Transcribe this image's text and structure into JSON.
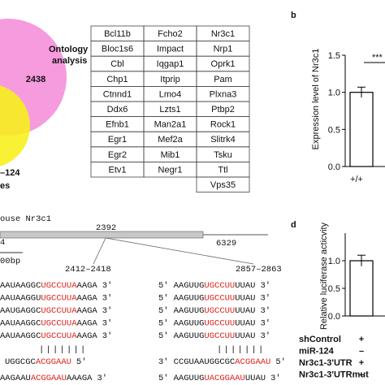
{
  "venn": {
    "count": "2438",
    "label_lines": [
      "Ontology",
      "analysis"
    ],
    "left_fragments": [
      "–124",
      "es"
    ]
  },
  "table": {
    "rows": [
      [
        "Bcl11b",
        "Fcho2",
        "Nr3c1"
      ],
      [
        "Bloc1s6",
        "Impact",
        "Nrp1"
      ],
      [
        "Cbl",
        "Iqgap1",
        "Oprk1"
      ],
      [
        "Chp1",
        "Itprip",
        "Pam"
      ],
      [
        "Ctnnd1",
        "Lmo4",
        "Plxna3"
      ],
      [
        "Ddx6",
        "Lzts1",
        "Ptbp2"
      ],
      [
        "Efnb1",
        "Man2a1",
        "Rock1"
      ],
      [
        "Egr1",
        "Mef2a",
        "Slitrk4"
      ],
      [
        "Egr2",
        "Mib1",
        "Tsku"
      ],
      [
        "Etv1",
        "Negr1",
        "Ttl"
      ],
      [
        null,
        null,
        "Vps35"
      ]
    ]
  },
  "panel_b": {
    "letter": "b",
    "ylabel": "Expression level of Nr3c1",
    "category": "+/+",
    "value": 1.0,
    "error": 0.07,
    "significance": "***",
    "ylim": [
      0,
      1.5
    ],
    "yticks": [
      {
        "value": 0,
        "label": "0.0"
      },
      0.5,
      {
        "value": 1,
        "label": "1.0"
      },
      1.5
    ]
  },
  "panel_d": {
    "letter": "d",
    "ylabel": "Relative luciferase acticvity",
    "value": 1.0,
    "error": 0.1,
    "ylim": [
      0,
      1.5
    ],
    "yticks": [
      {
        "value": 0,
        "label": "0.0"
      },
      0.5,
      {
        "value": 1,
        "label": "1.0"
      }
    ],
    "conditions": [
      {
        "name": "shControl",
        "sign": "+"
      },
      {
        "name": "miR-124",
        "sign": "–"
      },
      {
        "name": "Nr3c1-3'UTR",
        "sign": "+"
      },
      {
        "name": "Nr3c1-3'UTRmut",
        "sign": "–"
      }
    ]
  },
  "gene": {
    "title": "ouse Nr3c1",
    "start": "4",
    "site": "2392",
    "end": "6329",
    "scale": "00bp",
    "site1": "2412–2418",
    "site2": "2857–2863"
  },
  "sequences": {
    "left": {
      "rows": [
        [
          "AAUAAGGC",
          "UGCCUUA",
          "AAGA",
          "3′"
        ],
        [
          "AAUAAGGU",
          "UGCCUUA",
          "AAGA",
          "3′"
        ],
        [
          "AAUGAGGC",
          "UGCCUUA",
          "AAGA",
          "3′"
        ],
        [
          "AAUAAGGC",
          "UGCCUUA",
          "AAGA",
          "3′"
        ],
        [
          "AAUAAGGC",
          "UGCCUUA",
          "AAGA",
          "3′"
        ]
      ],
      "pairing": "|||||||",
      "mir": [
        "UGGCGC",
        "ACGGAAU",
        "5′"
      ],
      "mut": [
        "AAGAAU",
        "ACGGAAU",
        "AAAGA",
        "3′"
      ]
    },
    "right": {
      "rows": [
        [
          "5′",
          "AAGUUG",
          "UGCCUU",
          "UUAU",
          "3′"
        ],
        [
          "5′",
          "AAGUUG",
          "UGCCUU",
          "UUAU",
          "3′"
        ],
        [
          "5′",
          "AAGUUG",
          "UGCCUU",
          "UUAU",
          "3′"
        ],
        [
          "5′",
          "AAGUUG",
          "UGCCUU",
          "UUAU",
          "3′"
        ],
        [
          "5′",
          "AAGUUG",
          "UGCCUU",
          "UUAU",
          "3′"
        ]
      ],
      "pairing": "|||||||",
      "mir": [
        "3′",
        "CCGUAAUGGCGC",
        "ACGGAAU",
        "5′"
      ],
      "mut": [
        "5′",
        "AAGUUG",
        "UACGGAAU",
        "UUAU",
        "3′"
      ]
    }
  }
}
